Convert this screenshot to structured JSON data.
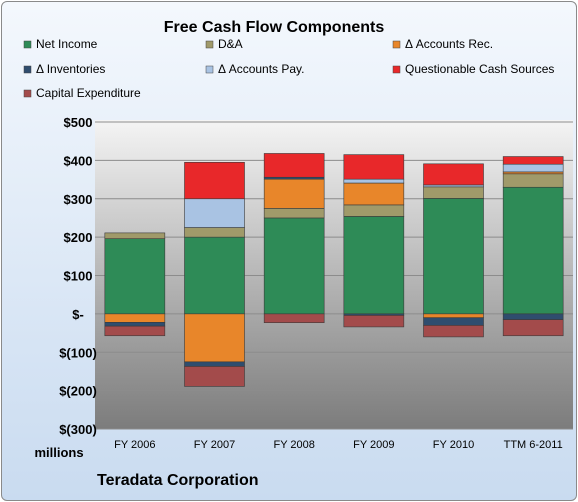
{
  "chart_data": {
    "type": "bar",
    "stacked": true,
    "title": "Free Cash Flow Components",
    "xlabel": "",
    "ylabel": "millions",
    "ylim": [
      -300,
      500
    ],
    "yticks": [
      -300,
      -200,
      -100,
      0,
      100,
      200,
      300,
      400,
      500
    ],
    "ytick_labels": [
      "$(300)",
      "$(200)",
      "$(100)",
      "$-",
      "$100",
      "$200",
      "$300",
      "$400",
      "$500"
    ],
    "categories": [
      "FY 2006",
      "FY 2007",
      "FY 2008",
      "FY 2009",
      "FY 2010",
      "TTM 6-2011"
    ],
    "legend_position": "top",
    "grid": true,
    "series": [
      {
        "name": "Net Income",
        "color": "#2e8b57",
        "values": [
          196,
          200,
          250,
          254,
          301,
          330
        ]
      },
      {
        "name": "D&A",
        "color": "#a09a6a",
        "values": [
          15,
          25,
          25,
          30,
          30,
          35
        ]
      },
      {
        "name": "Δ Accounts Rec.",
        "color": "#e8862a",
        "values": [
          -22,
          -125,
          76,
          57,
          -10,
          5
        ]
      },
      {
        "name": "Δ Inventories",
        "color": "#2f4d6e",
        "values": [
          -10,
          -12,
          5,
          -4,
          -20,
          -15
        ]
      },
      {
        "name": "Δ Accounts Pay.",
        "color": "#a9c3e3",
        "values": [
          0,
          75,
          0,
          10,
          5,
          20
        ]
      },
      {
        "name": "Questionable Cash Sources",
        "color": "#e8282a",
        "values": [
          0,
          95,
          62,
          64,
          55,
          20
        ]
      },
      {
        "name": "Capital Expenditure",
        "color": "#a34b4b",
        "values": [
          -25,
          -52,
          -23,
          -30,
          -30,
          -42
        ]
      }
    ]
  },
  "footer": {
    "company": "Teradata Corporation",
    "unit_label": "millions"
  }
}
